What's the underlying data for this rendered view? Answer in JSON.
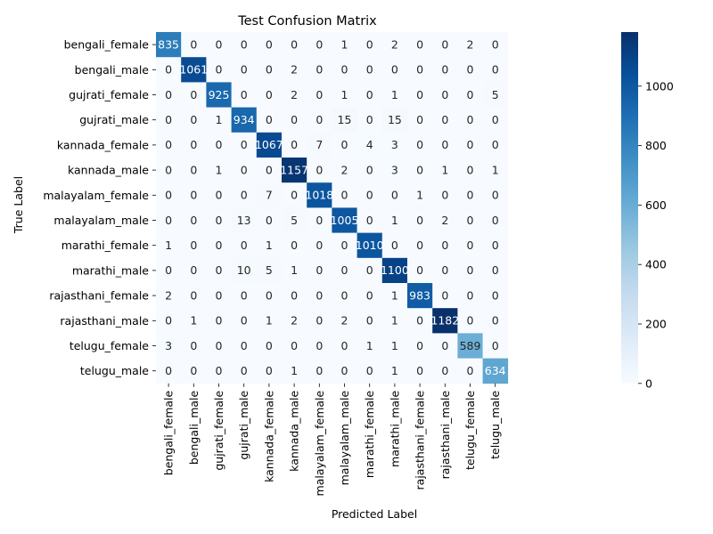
{
  "chart_data": {
    "type": "heatmap",
    "title": "Test Confusion Matrix",
    "xlabel": "Predicted Label",
    "ylabel": "True Label",
    "labels": [
      "bengali_female",
      "bengali_male",
      "gujrati_female",
      "gujrati_male",
      "kannada_female",
      "kannada_male",
      "malayalam_female",
      "malayalam_male",
      "marathi_female",
      "marathi_male",
      "rajasthani_female",
      "rajasthani_male",
      "telugu_female",
      "telugu_male"
    ],
    "matrix": [
      [
        835,
        0,
        0,
        0,
        0,
        0,
        0,
        1,
        0,
        2,
        0,
        0,
        2,
        0
      ],
      [
        0,
        1061,
        0,
        0,
        0,
        2,
        0,
        0,
        0,
        0,
        0,
        0,
        0,
        0
      ],
      [
        0,
        0,
        925,
        0,
        0,
        2,
        0,
        1,
        0,
        1,
        0,
        0,
        0,
        5
      ],
      [
        0,
        0,
        1,
        934,
        0,
        0,
        0,
        15,
        0,
        15,
        0,
        0,
        0,
        0
      ],
      [
        0,
        0,
        0,
        0,
        1067,
        0,
        7,
        0,
        4,
        3,
        0,
        0,
        0,
        0
      ],
      [
        0,
        0,
        1,
        0,
        0,
        1157,
        0,
        2,
        0,
        3,
        0,
        1,
        0,
        1
      ],
      [
        0,
        0,
        0,
        0,
        7,
        0,
        1018,
        0,
        0,
        0,
        1,
        0,
        0,
        0
      ],
      [
        0,
        0,
        0,
        13,
        0,
        5,
        0,
        1005,
        0,
        1,
        0,
        2,
        0,
        0
      ],
      [
        1,
        0,
        0,
        0,
        1,
        0,
        0,
        0,
        1010,
        0,
        0,
        0,
        0,
        0
      ],
      [
        0,
        0,
        0,
        10,
        5,
        1,
        0,
        0,
        0,
        1100,
        0,
        0,
        0,
        0
      ],
      [
        2,
        0,
        0,
        0,
        0,
        0,
        0,
        0,
        0,
        1,
        983,
        0,
        0,
        0
      ],
      [
        0,
        1,
        0,
        0,
        1,
        2,
        0,
        2,
        0,
        1,
        0,
        1182,
        0,
        0
      ],
      [
        3,
        0,
        0,
        0,
        0,
        0,
        0,
        0,
        1,
        1,
        0,
        0,
        589,
        0
      ],
      [
        0,
        0,
        0,
        0,
        0,
        1,
        0,
        0,
        0,
        1,
        0,
        0,
        0,
        634
      ]
    ],
    "colorbar": {
      "colormap": "Blues",
      "vmin": 0,
      "vmax": 1182,
      "ticks": [
        0,
        200,
        400,
        600,
        800,
        1000
      ]
    }
  }
}
